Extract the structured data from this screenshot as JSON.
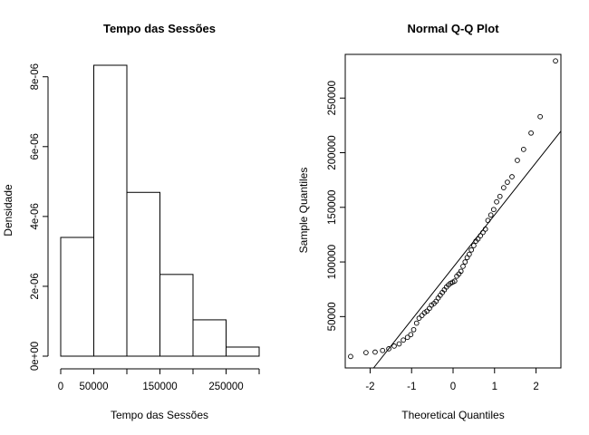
{
  "chart_data": [
    {
      "type": "bar",
      "title": "Tempo das Sessões",
      "xlabel": "Tempo das Sessões",
      "ylabel": "Densidade",
      "bins": [
        {
          "from": 0,
          "to": 50000,
          "density": 3.4e-06
        },
        {
          "from": 50000,
          "to": 100000,
          "density": 8.33e-06
        },
        {
          "from": 100000,
          "to": 150000,
          "density": 4.69e-06
        },
        {
          "from": 150000,
          "to": 200000,
          "density": 2.34e-06
        },
        {
          "from": 200000,
          "to": 250000,
          "density": 1.04e-06
        },
        {
          "from": 250000,
          "to": 300000,
          "density": 2.6e-07
        }
      ],
      "xlim": [
        0,
        300000
      ],
      "ylim": [
        0,
        8.33e-06
      ],
      "x_ticks": [
        0,
        50000,
        150000,
        250000
      ],
      "x_tick_labels": [
        "0",
        "50000",
        "150000",
        "250000"
      ],
      "x_minor_ticks": [
        100000,
        200000,
        300000
      ],
      "y_ticks": [
        0,
        2e-06,
        4e-06,
        6e-06,
        8e-06
      ],
      "y_tick_labels": [
        "0e+00",
        "2e-06",
        "4e-06",
        "6e-06",
        "8e-06"
      ],
      "bar_color": "#ffffff",
      "border_color": "#000000"
    },
    {
      "type": "scatter",
      "title": "Normal Q-Q Plot",
      "xlabel": "Theoretical Quantiles",
      "ylabel": "Sample Quantiles",
      "xlim": [
        -2.6,
        2.6
      ],
      "ylim": [
        3000,
        290000
      ],
      "x_ticks": [
        -2,
        -1,
        0,
        1,
        2
      ],
      "x_tick_labels": [
        "-2",
        "-1",
        "0",
        "1",
        "2"
      ],
      "y_ticks": [
        50000,
        100000,
        150000,
        200000,
        250000
      ],
      "y_tick_labels": [
        "50000",
        "100000",
        "150000",
        "200000",
        "250000"
      ],
      "reference_line": {
        "intercept": 95000,
        "slope": 48000
      },
      "points": [
        [
          -2.47,
          13500
        ],
        [
          -2.1,
          17000
        ],
        [
          -1.88,
          17500
        ],
        [
          -1.7,
          19000
        ],
        [
          -1.55,
          20500
        ],
        [
          -1.42,
          23000
        ],
        [
          -1.3,
          25000
        ],
        [
          -1.2,
          28500
        ],
        [
          -1.1,
          31000
        ],
        [
          -1.02,
          33500
        ],
        [
          -0.95,
          38000
        ],
        [
          -0.88,
          44000
        ],
        [
          -0.82,
          48500
        ],
        [
          -0.75,
          51000
        ],
        [
          -0.69,
          53500
        ],
        [
          -0.63,
          55000
        ],
        [
          -0.57,
          57500
        ],
        [
          -0.52,
          60500
        ],
        [
          -0.46,
          62000
        ],
        [
          -0.41,
          64000
        ],
        [
          -0.36,
          67000
        ],
        [
          -0.31,
          69500
        ],
        [
          -0.26,
          72000
        ],
        [
          -0.21,
          74500
        ],
        [
          -0.16,
          77000
        ],
        [
          -0.11,
          79000
        ],
        [
          -0.06,
          80500
        ],
        [
          -0.01,
          81500
        ],
        [
          0.04,
          82500
        ],
        [
          0.09,
          87000
        ],
        [
          0.14,
          89000
        ],
        [
          0.19,
          91500
        ],
        [
          0.24,
          96000
        ],
        [
          0.29,
          100000
        ],
        [
          0.34,
          104000
        ],
        [
          0.39,
          107000
        ],
        [
          0.44,
          111000
        ],
        [
          0.5,
          115000
        ],
        [
          0.55,
          119000
        ],
        [
          0.6,
          121000
        ],
        [
          0.66,
          124000
        ],
        [
          0.72,
          127000
        ],
        [
          0.78,
          130000
        ],
        [
          0.84,
          138000
        ],
        [
          0.91,
          143000
        ],
        [
          0.98,
          148000
        ],
        [
          1.05,
          155000
        ],
        [
          1.13,
          160000
        ],
        [
          1.22,
          168000
        ],
        [
          1.31,
          173000
        ],
        [
          1.42,
          178000
        ],
        [
          1.55,
          193000
        ],
        [
          1.7,
          203000
        ],
        [
          1.88,
          218000
        ],
        [
          2.1,
          233000
        ],
        [
          2.47,
          284000
        ]
      ],
      "point_color": "#000000"
    }
  ]
}
